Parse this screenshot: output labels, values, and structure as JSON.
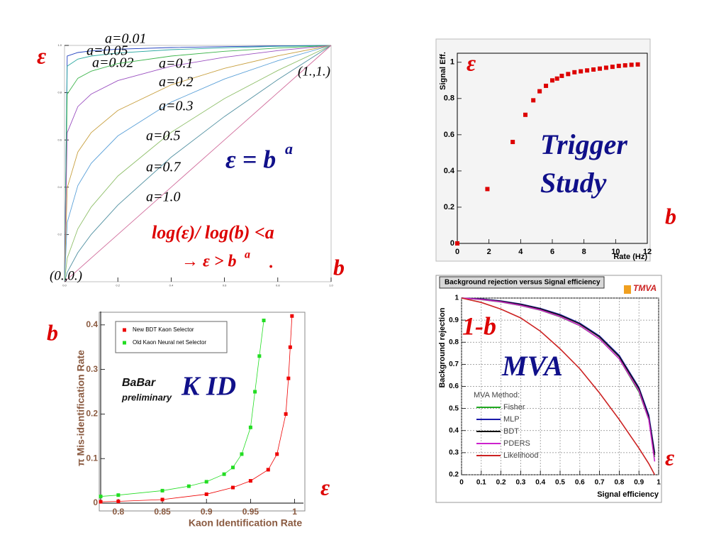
{
  "chart_data": [
    {
      "type": "line",
      "x": [
        0,
        0.01,
        0.05,
        0.1,
        0.2,
        0.4,
        0.6,
        0.8,
        1
      ],
      "xlim": [
        0,
        1
      ],
      "ylim": [
        0,
        1
      ],
      "xticks": [
        {
          "value": 0,
          "label": "0.0"
        },
        0.2,
        0.4,
        0.6,
        0.8,
        {
          "value": 1,
          "label": "1.0"
        }
      ],
      "yticks": [
        0.2,
        0.4,
        0.6,
        0.8,
        {
          "value": 1,
          "label": "1.0"
        }
      ],
      "series": [
        {
          "name": "a=0.01",
          "color": "#1f3fbf",
          "values": [
            0,
            0.955,
            0.97,
            0.977,
            0.984,
            0.991,
            0.995,
            0.998,
            1
          ]
        },
        {
          "name": "a=0.02",
          "color": "#2aa8a0",
          "values": [
            0,
            0.912,
            0.942,
            0.955,
            0.968,
            0.982,
            0.99,
            0.996,
            1
          ]
        },
        {
          "name": "a=0.05",
          "color": "#3cb44b",
          "values": [
            0,
            0.794,
            0.861,
            0.891,
            0.923,
            0.955,
            0.975,
            0.989,
            1
          ]
        },
        {
          "name": "a=0.1",
          "color": "#9a4fc0",
          "values": [
            0,
            0.631,
            0.741,
            0.794,
            0.851,
            0.912,
            0.95,
            0.978,
            1
          ]
        },
        {
          "name": "a=0.2",
          "color": "#c8a040",
          "values": [
            0,
            0.398,
            0.549,
            0.631,
            0.725,
            0.833,
            0.903,
            0.956,
            1
          ]
        },
        {
          "name": "a=0.3",
          "color": "#5aa0d8",
          "values": [
            0,
            0.251,
            0.407,
            0.501,
            0.617,
            0.76,
            0.858,
            0.935,
            1
          ]
        },
        {
          "name": "a=0.5",
          "color": "#8fbf6a",
          "values": [
            0,
            0.1,
            0.224,
            0.316,
            0.447,
            0.632,
            0.775,
            0.894,
            1
          ]
        },
        {
          "name": "a=0.7",
          "color": "#4f8fa0",
          "values": [
            0,
            0.04,
            0.123,
            0.2,
            0.324,
            0.527,
            0.699,
            0.855,
            1
          ]
        },
        {
          "name": "a=1.0",
          "color": "#d06a9a",
          "values": [
            0,
            0.01,
            0.05,
            0.1,
            0.2,
            0.4,
            0.6,
            0.8,
            1
          ]
        }
      ],
      "annotations": [
        "ε",
        "b",
        "(1.,1.)",
        "(0.,0.)",
        "ε = b",
        "a",
        "log(ε)/ log(b) <a",
        "→ ε > b",
        "a",
        "."
      ]
    },
    {
      "type": "scatter",
      "x_label": "Rate (Hz)",
      "y_label": "Signal Eff.",
      "xlim": [
        0,
        12
      ],
      "ylim": [
        0,
        1.05
      ],
      "xticks": [
        0,
        2,
        4,
        6,
        8,
        10,
        12
      ],
      "yticks": [
        0,
        0.2,
        0.4,
        0.6,
        0.8,
        1
      ],
      "series": [
        {
          "color": "#dd0000",
          "x": [
            0,
            1.9,
            3.5,
            4.3,
            4.8,
            5.2,
            5.6,
            6,
            6.3,
            6.6,
            7,
            7.4,
            7.8,
            8.2,
            8.6,
            9,
            9.4,
            9.8,
            10.2,
            10.6,
            11,
            11.4
          ],
          "values": [
            0,
            0.3,
            0.56,
            0.71,
            0.79,
            0.84,
            0.87,
            0.9,
            0.91,
            0.925,
            0.935,
            0.945,
            0.95,
            0.955,
            0.96,
            0.965,
            0.97,
            0.975,
            0.98,
            0.983,
            0.986,
            0.988
          ]
        }
      ],
      "annotations": [
        "ε",
        "b",
        "Trigger",
        "Study"
      ]
    },
    {
      "type": "scatter",
      "x_label": "Kaon Identification Rate",
      "y_label": "π Mis-identification  Rate",
      "xlim": [
        0.78,
        1.01
      ],
      "ylim": [
        0,
        0.43
      ],
      "xticks": [
        0.8,
        0.85,
        0.9,
        0.95,
        1
      ],
      "yticks": [
        0,
        0.1,
        0.2,
        0.3,
        0.4
      ],
      "legend": "upper left",
      "series": [
        {
          "name": "New BDT Kaon Selector",
          "color": "#ee0000",
          "x": [
            0.78,
            0.8,
            0.85,
            0.9,
            0.93,
            0.95,
            0.97,
            0.98,
            0.99,
            0.993,
            0.995,
            0.997
          ],
          "values": [
            0.003,
            0.004,
            0.008,
            0.02,
            0.035,
            0.05,
            0.075,
            0.11,
            0.2,
            0.28,
            0.35,
            0.42
          ]
        },
        {
          "name": "Old Kaon Neural net Selector",
          "color": "#22dd22",
          "x": [
            0.78,
            0.8,
            0.85,
            0.88,
            0.9,
            0.92,
            0.93,
            0.94,
            0.95,
            0.955,
            0.96,
            0.965
          ],
          "values": [
            0.015,
            0.018,
            0.028,
            0.038,
            0.048,
            0.065,
            0.08,
            0.11,
            0.17,
            0.25,
            0.33,
            0.41
          ]
        }
      ],
      "annotations": [
        "BaBar",
        "preliminary",
        "K ID",
        "b",
        "ε"
      ]
    },
    {
      "type": "line",
      "title": "Background rejection versus Signal efficiency",
      "logo": "TMVA",
      "x_label": "Signal efficiency",
      "y_label": "Background rejection",
      "legend_title": "MVA Method:",
      "legend": "lower left",
      "grid": true,
      "x": [
        0,
        0.1,
        0.2,
        0.3,
        0.4,
        0.5,
        0.6,
        0.7,
        0.8,
        0.9,
        0.95,
        0.98
      ],
      "xlim": [
        0,
        1
      ],
      "ylim": [
        0.2,
        1
      ],
      "xticks": [
        0,
        0.1,
        0.2,
        0.3,
        0.4,
        0.5,
        0.6,
        0.7,
        0.8,
        0.9,
        1
      ],
      "yticks": [
        0.2,
        0.3,
        0.4,
        0.5,
        0.6,
        0.7,
        0.8,
        0.9,
        1
      ],
      "series": [
        {
          "name": "Fisher",
          "color": "#22aa22",
          "values": [
            1,
            0.993,
            0.982,
            0.966,
            0.945,
            0.915,
            0.875,
            0.815,
            0.725,
            0.575,
            0.45,
            0.28
          ]
        },
        {
          "name": "MLP",
          "color": "#1a1aaa",
          "values": [
            1,
            0.996,
            0.987,
            0.973,
            0.953,
            0.925,
            0.886,
            0.828,
            0.74,
            0.595,
            0.47,
            0.3
          ]
        },
        {
          "name": "BDT",
          "color": "#111111",
          "values": [
            1,
            0.995,
            0.986,
            0.971,
            0.951,
            0.922,
            0.883,
            0.824,
            0.735,
            0.59,
            0.46,
            0.29
          ]
        },
        {
          "name": "PDERS",
          "color": "#cc22cc",
          "values": [
            1,
            0.994,
            0.983,
            0.967,
            0.946,
            0.916,
            0.876,
            0.815,
            0.725,
            0.58,
            0.45,
            0.26
          ]
        },
        {
          "name": "Likelihood",
          "color": "#cc2222",
          "values": [
            1,
            0.98,
            0.95,
            0.91,
            0.85,
            0.77,
            0.68,
            0.57,
            0.45,
            0.32,
            0.25,
            0.2
          ]
        }
      ],
      "annotations": [
        "1-b",
        "MVA",
        "ε"
      ]
    }
  ]
}
